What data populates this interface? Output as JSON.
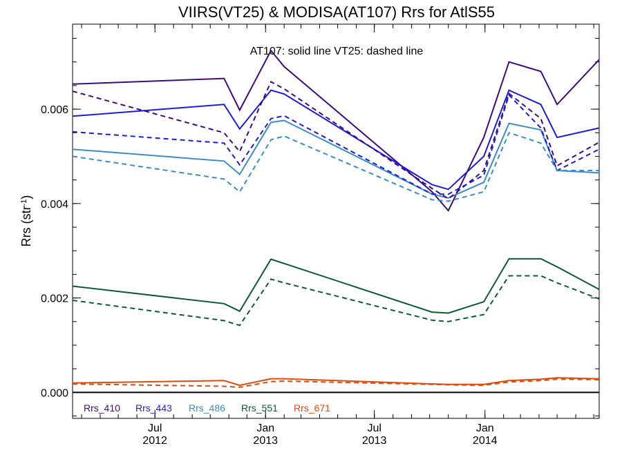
{
  "chart_data": {
    "type": "line",
    "title": "VIIRS(VT25) & MODISA(AT107)  Rrs for AtlS55",
    "annotation": "AT107: solid line   VT25: dashed line",
    "ylabel_main": "Rrs (str",
    "ylabel_sup": "-1",
    "ylabel_close": ")",
    "xlabel": "",
    "xlim": [
      "2012-02-15",
      "2014-07-10"
    ],
    "ylim": [
      -0.00055,
      0.0078
    ],
    "zero_line": 0,
    "y_ticks": [
      0.0,
      0.002,
      0.004,
      0.006
    ],
    "y_tick_labels": [
      "0.000",
      "0.002",
      "0.004",
      "0.006"
    ],
    "x_ticks": [
      {
        "date": "2012-07-01",
        "month": "Jul",
        "year": "2012"
      },
      {
        "date": "2013-01-01",
        "month": "Jan",
        "year": "2013"
      },
      {
        "date": "2013-07-01",
        "month": "Jul",
        "year": "2013"
      },
      {
        "date": "2014-01-01",
        "month": "Jan",
        "year": "2014"
      }
    ],
    "legend_position": "bottom-left",
    "x": [
      "2012-02-15",
      "2012-10-24",
      "2012-11-19",
      "2013-01-10",
      "2013-02-01",
      "2013-10-05",
      "2013-11-01",
      "2013-12-30",
      "2014-02-10",
      "2014-04-04",
      "2014-05-01",
      "2014-07-10"
    ],
    "series": [
      {
        "name": "Rrs_410",
        "color": "#3b0a82",
        "style": "solid",
        "values": [
          0.00653,
          0.00665,
          0.00598,
          0.00724,
          0.0069,
          0.00425,
          0.00385,
          0.0054,
          0.007,
          0.0068,
          0.0061,
          0.00705
        ]
      },
      {
        "name": "Rrs_443",
        "color": "#1a1ae0",
        "style": "solid",
        "values": [
          0.00585,
          0.0061,
          0.00558,
          0.0064,
          0.00632,
          0.0044,
          0.0043,
          0.005,
          0.0064,
          0.0061,
          0.0054,
          0.0056
        ]
      },
      {
        "name": "Rrs_486",
        "color": "#3a8cc8",
        "style": "solid",
        "values": [
          0.00515,
          0.0049,
          0.00462,
          0.00572,
          0.00576,
          0.0042,
          0.00412,
          0.00445,
          0.0057,
          0.00556,
          0.0047,
          0.00465
        ]
      },
      {
        "name": "Rrs_551",
        "color": "#0a5a32",
        "style": "solid",
        "values": [
          0.00225,
          0.00188,
          0.00172,
          0.00282,
          0.00273,
          0.0017,
          0.00168,
          0.00192,
          0.00283,
          0.00283,
          0.00266,
          0.00218
        ]
      },
      {
        "name": "Rrs_671",
        "color": "#e04a0a",
        "style": "solid",
        "values": [
          0.0002,
          0.00025,
          0.00015,
          0.00029,
          0.00029,
          0.00018,
          0.00017,
          0.00017,
          0.00025,
          0.00028,
          0.00031,
          0.00029
        ]
      },
      {
        "name": "Rrs_410",
        "color": "#3b0a82",
        "style": "dashed",
        "values": [
          0.00638,
          0.0055,
          0.0051,
          0.00658,
          0.00643,
          0.00432,
          0.0041,
          0.0047,
          0.00633,
          0.0058,
          0.0048,
          0.0053
        ]
      },
      {
        "name": "Rrs_443",
        "color": "#1a1ae0",
        "style": "dashed",
        "values": [
          0.00552,
          0.00528,
          0.00482,
          0.0058,
          0.00586,
          0.0042,
          0.0042,
          0.0046,
          0.0063,
          0.0056,
          0.0047,
          0.00515
        ]
      },
      {
        "name": "Rrs_486",
        "color": "#3a8cc8",
        "style": "dashed",
        "values": [
          0.005,
          0.00452,
          0.00425,
          0.00535,
          0.00543,
          0.00408,
          0.00405,
          0.00425,
          0.0055,
          0.00528,
          0.0047,
          0.0047
        ]
      },
      {
        "name": "Rrs_551",
        "color": "#0a5a32",
        "style": "dashed",
        "values": [
          0.00195,
          0.00152,
          0.00142,
          0.0024,
          0.00232,
          0.00153,
          0.0015,
          0.00165,
          0.00247,
          0.00247,
          0.00232,
          0.00198
        ]
      },
      {
        "name": "Rrs_671",
        "color": "#e04a0a",
        "style": "dashed",
        "values": [
          0.00018,
          0.00013,
          0.00011,
          0.00023,
          0.00024,
          0.00017,
          0.00016,
          0.00015,
          0.00022,
          0.00025,
          0.00028,
          0.00027
        ]
      }
    ],
    "legend": [
      {
        "label": "Rrs_410",
        "color": "#3b0a82"
      },
      {
        "label": "Rrs_443",
        "color": "#1a1ae0"
      },
      {
        "label": "Rrs_486",
        "color": "#3a8cc8"
      },
      {
        "label": "Rrs_551",
        "color": "#0a5a32"
      },
      {
        "label": "Rrs_671",
        "color": "#e04a0a"
      }
    ]
  }
}
